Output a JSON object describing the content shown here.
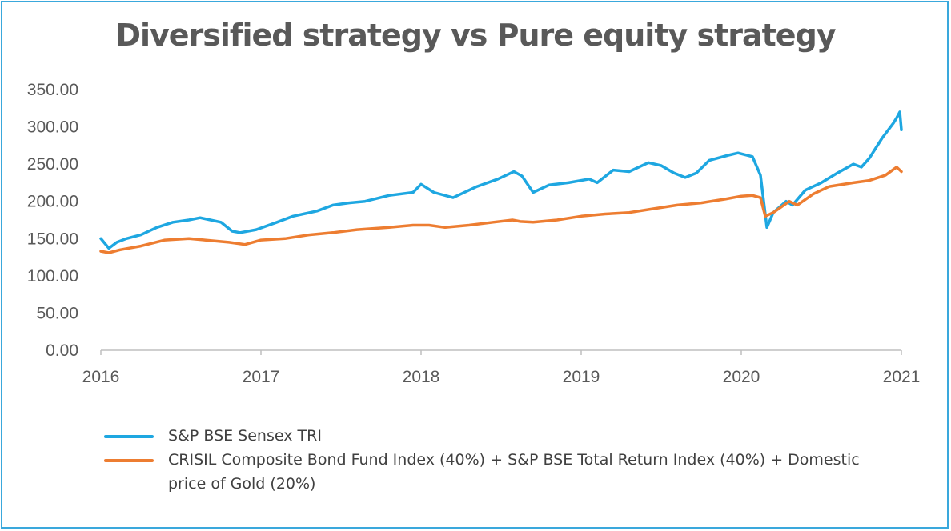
{
  "chart_data": {
    "type": "line",
    "title": "Diversified strategy vs Pure equity strategy",
    "xlabel": "",
    "ylabel": "",
    "xlim": [
      2016,
      2021
    ],
    "ylim": [
      0,
      350
    ],
    "x_ticks": [
      "2016",
      "2017",
      "2018",
      "2019",
      "2020",
      "2021"
    ],
    "y_ticks": [
      "0.00",
      "50.00",
      "100.00",
      "150.00",
      "200.00",
      "250.00",
      "300.00",
      "350.00"
    ],
    "grid": false,
    "legend_position": "bottom",
    "series": [
      {
        "name": "S&P BSE Sensex TRI",
        "color": "#1ea7e1",
        "x": [
          2016.0,
          2016.05,
          2016.1,
          2016.16,
          2016.25,
          2016.35,
          2016.45,
          2016.55,
          2016.62,
          2016.75,
          2016.82,
          2016.87,
          2016.97,
          2017.1,
          2017.2,
          2017.35,
          2017.45,
          2017.55,
          2017.65,
          2017.8,
          2017.95,
          2018.0,
          2018.08,
          2018.2,
          2018.35,
          2018.48,
          2018.58,
          2018.63,
          2018.7,
          2018.8,
          2018.92,
          2019.05,
          2019.1,
          2019.2,
          2019.3,
          2019.42,
          2019.5,
          2019.58,
          2019.65,
          2019.72,
          2019.8,
          2019.92,
          2019.98,
          2020.07,
          2020.12,
          2020.16,
          2020.2,
          2020.28,
          2020.32,
          2020.4,
          2020.5,
          2020.6,
          2020.7,
          2020.75,
          2020.8,
          2020.88,
          2020.95,
          2020.97,
          2020.99,
          2021.0
        ],
        "y": [
          150,
          137,
          145,
          150,
          155,
          165,
          172,
          175,
          178,
          172,
          160,
          158,
          162,
          172,
          180,
          187,
          195,
          198,
          200,
          208,
          212,
          223,
          212,
          205,
          220,
          230,
          240,
          234,
          212,
          222,
          225,
          230,
          225,
          242,
          240,
          252,
          248,
          238,
          232,
          238,
          255,
          262,
          265,
          260,
          235,
          165,
          185,
          200,
          195,
          215,
          225,
          238,
          250,
          246,
          258,
          285,
          305,
          312,
          320,
          296
        ]
      },
      {
        "name": "CRISIL Composite Bond Fund Index (40%) + S&P BSE Total Return Index (40%) + Domestic price of Gold (20%)",
        "color": "#ed7d31",
        "x": [
          2016.0,
          2016.05,
          2016.12,
          2016.25,
          2016.4,
          2016.55,
          2016.65,
          2016.8,
          2016.9,
          2017.0,
          2017.15,
          2017.3,
          2017.45,
          2017.6,
          2017.8,
          2017.95,
          2018.05,
          2018.15,
          2018.3,
          2018.45,
          2018.57,
          2018.62,
          2018.7,
          2018.85,
          2019.0,
          2019.15,
          2019.3,
          2019.45,
          2019.6,
          2019.75,
          2019.9,
          2020.0,
          2020.07,
          2020.12,
          2020.15,
          2020.2,
          2020.3,
          2020.35,
          2020.45,
          2020.55,
          2020.7,
          2020.8,
          2020.9,
          2020.97,
          2021.0
        ],
        "y": [
          133,
          131,
          135,
          140,
          148,
          150,
          148,
          145,
          142,
          148,
          150,
          155,
          158,
          162,
          165,
          168,
          168,
          165,
          168,
          172,
          175,
          173,
          172,
          175,
          180,
          183,
          185,
          190,
          195,
          198,
          203,
          207,
          208,
          205,
          180,
          185,
          200,
          195,
          210,
          220,
          225,
          228,
          235,
          246,
          240
        ]
      }
    ]
  }
}
